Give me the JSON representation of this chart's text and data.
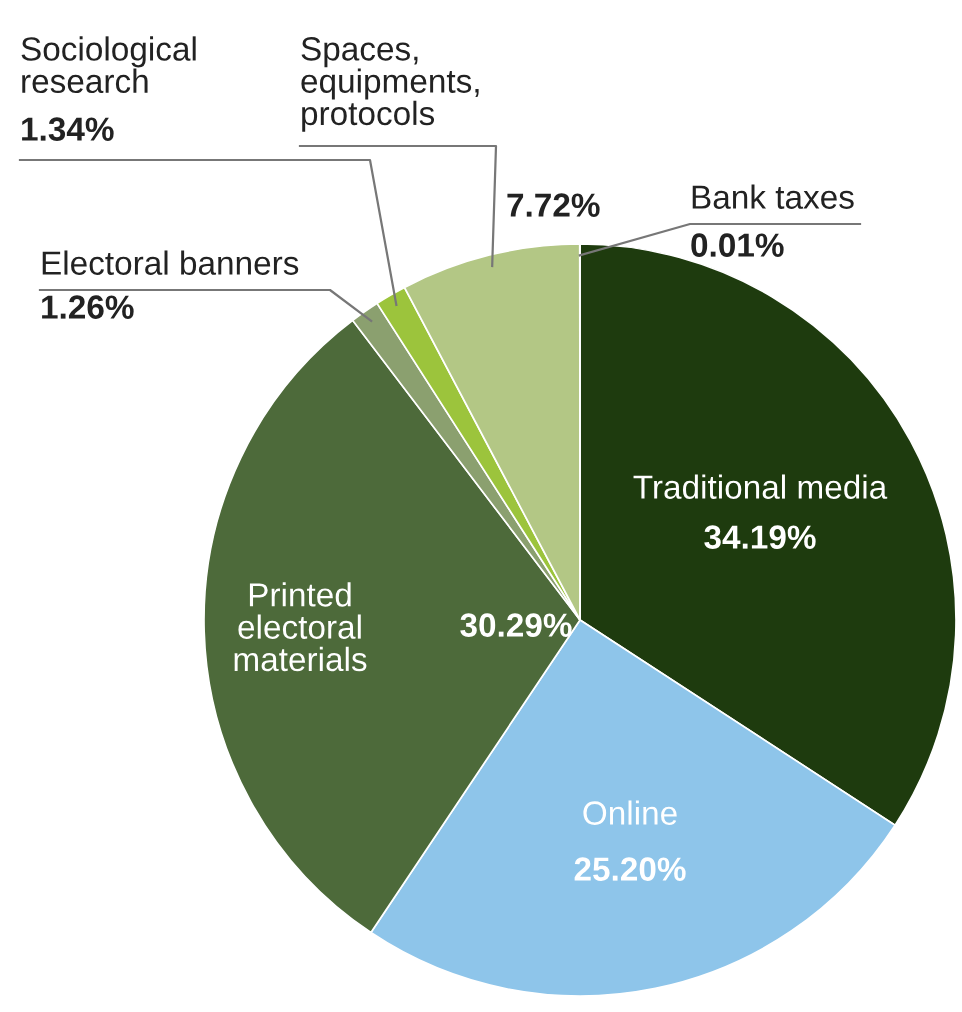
{
  "chart_data": {
    "type": "pie",
    "categories": [
      "Traditional media",
      "Online",
      "Printed\nelectoral\nmaterials",
      "Electoral banners",
      "Sociological\nresearch",
      "Spaces,\nequipments,\nprotocols",
      "Bank taxes"
    ],
    "values": [
      34.19,
      25.2,
      30.29,
      1.26,
      1.34,
      7.72,
      0.01
    ],
    "value_labels": [
      "34.19%",
      "25.20%",
      "30.29%",
      "1.26%",
      "1.34%",
      "7.72%",
      "0.01%"
    ],
    "colors": [
      "#1e3b0e",
      "#8ec5ea",
      "#4d6a3a",
      "#8ba06f",
      "#9cc43c",
      "#b3c785",
      "#b3c785"
    ]
  }
}
